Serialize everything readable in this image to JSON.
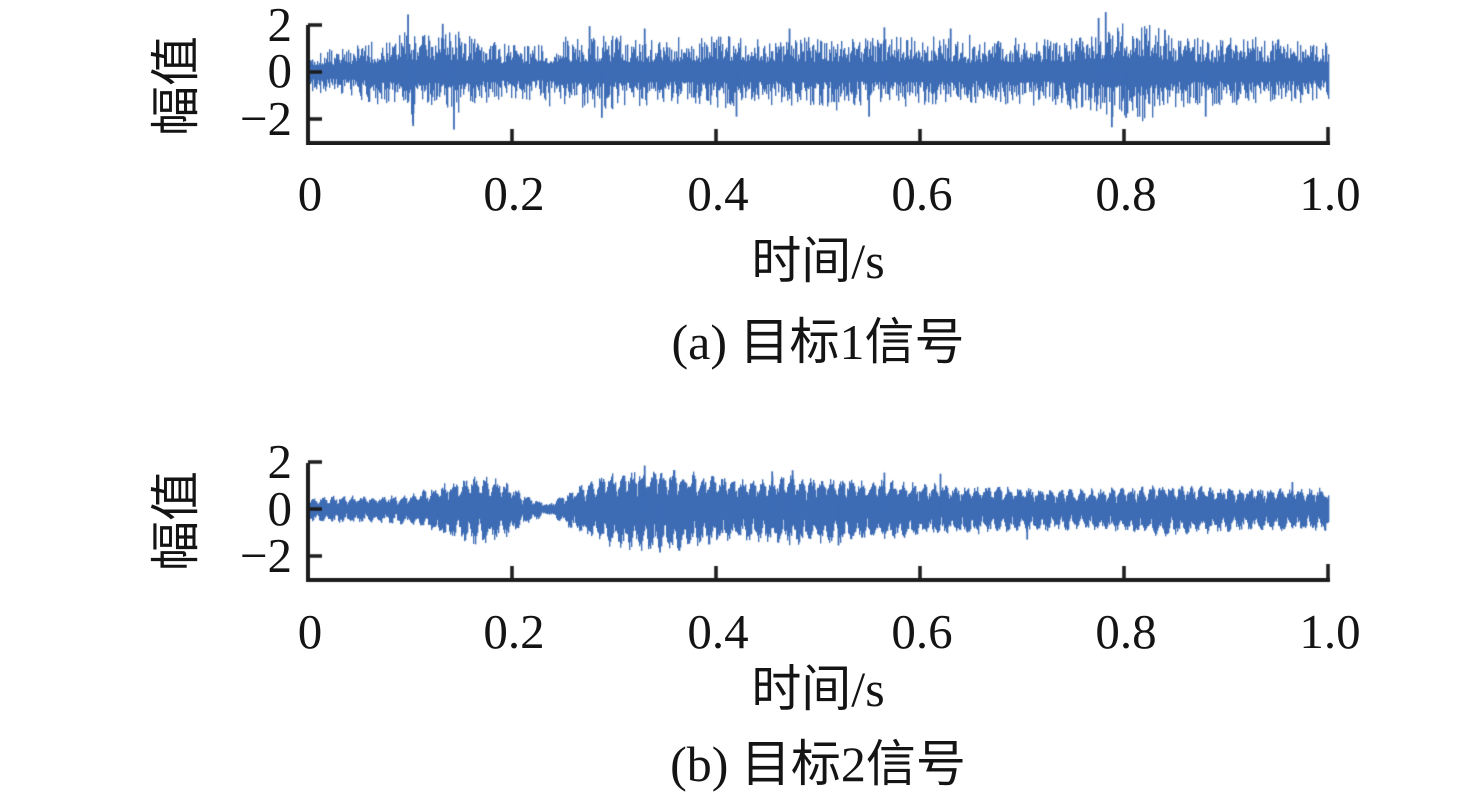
{
  "style": {
    "line_color": "#3d6cb5",
    "axis_color": "#1c1c1c",
    "text_color": "#141414",
    "background": "#ffffff"
  },
  "chart_data": [
    {
      "type": "line",
      "panel_label": "(a) 目标1信号",
      "xlabel": "时间/s",
      "ylabel": "幅值",
      "xlim": [
        0,
        1.0
      ],
      "ylim": [
        -3,
        2
      ],
      "xticks": [
        0,
        0.2,
        0.4,
        0.6,
        0.8,
        1.0
      ],
      "xtick_labels": [
        "0",
        "0.2",
        "0.4",
        "0.6",
        "0.8",
        "1.0"
      ],
      "yticks": [
        2,
        0,
        -2
      ],
      "ytick_labels": [
        "2",
        "0",
        "−2"
      ],
      "grid": false,
      "legend": null,
      "waveform_character": "dense zero-mean broadband noise, typical band ±1.2, occasional spikes to ±2.5",
      "envelope_t": [
        0,
        0.02,
        0.05,
        0.08,
        0.1,
        0.12,
        0.145,
        0.17,
        0.2,
        0.23,
        0.26,
        0.3,
        0.33,
        0.37,
        0.41,
        0.45,
        0.49,
        0.53,
        0.57,
        0.61,
        0.65,
        0.69,
        0.73,
        0.77,
        0.8,
        0.82,
        0.85,
        0.89,
        0.93,
        0.97,
        1.0
      ],
      "envelope_amp": [
        0.85,
        1.0,
        1.2,
        1.5,
        1.9,
        1.5,
        1.9,
        1.4,
        1.2,
        1.25,
        1.5,
        1.6,
        1.45,
        1.5,
        1.55,
        1.4,
        1.55,
        1.45,
        1.5,
        1.55,
        1.35,
        1.5,
        1.45,
        1.65,
        2.1,
        2.2,
        1.5,
        1.45,
        1.5,
        1.35,
        1.25
      ],
      "peaks": [
        {
          "t": 0.098,
          "v": 2.45
        },
        {
          "t": 0.103,
          "v": -2.3
        },
        {
          "t": 0.132,
          "v": 2.05
        },
        {
          "t": 0.143,
          "v": -2.45
        },
        {
          "t": 0.276,
          "v": 1.95
        },
        {
          "t": 0.288,
          "v": -1.95
        },
        {
          "t": 0.33,
          "v": 1.85
        },
        {
          "t": 0.42,
          "v": -1.9
        },
        {
          "t": 0.472,
          "v": 1.85
        },
        {
          "t": 0.55,
          "v": -1.9
        },
        {
          "t": 0.565,
          "v": 1.9
        },
        {
          "t": 0.63,
          "v": 1.85
        },
        {
          "t": 0.775,
          "v": 2.3
        },
        {
          "t": 0.782,
          "v": 2.55
        },
        {
          "t": 0.788,
          "v": -2.35
        },
        {
          "t": 0.802,
          "v": -1.95
        },
        {
          "t": 0.84,
          "v": 1.8
        },
        {
          "t": 0.88,
          "v": -1.9
        }
      ]
    },
    {
      "type": "line",
      "panel_label": "(b) 目标2信号",
      "xlabel": "时间/s",
      "ylabel": "幅值",
      "xlim": [
        0,
        1.0
      ],
      "ylim": [
        -3,
        2
      ],
      "xticks": [
        0,
        0.2,
        0.4,
        0.6,
        0.8,
        1.0
      ],
      "xtick_labels": [
        "0",
        "0.2",
        "0.4",
        "0.6",
        "0.8",
        "1.0"
      ],
      "yticks": [
        2,
        0,
        -2
      ],
      "ytick_labels": [
        "2",
        "0",
        "−2"
      ],
      "grid": false,
      "legend": null,
      "waveform_character": "amplitude-modulated oscillation; envelope node near t≈0.23, strongest lobe ≈±1.8 near t≈0.33",
      "carrier_cycles": 100,
      "envelope_t": [
        0,
        0.03,
        0.06,
        0.1,
        0.13,
        0.165,
        0.19,
        0.215,
        0.235,
        0.26,
        0.29,
        0.32,
        0.355,
        0.385,
        0.42,
        0.45,
        0.48,
        0.51,
        0.55,
        0.6,
        0.65,
        0.7,
        0.75,
        0.8,
        0.835,
        0.87,
        0.91,
        0.95,
        1.0
      ],
      "envelope_amp": [
        0.5,
        0.6,
        0.55,
        0.65,
        1.1,
        1.5,
        1.25,
        0.6,
        0.22,
        0.9,
        1.5,
        1.75,
        1.8,
        1.55,
        1.35,
        1.4,
        1.5,
        1.4,
        1.3,
        1.15,
        1.05,
        0.95,
        0.88,
        0.95,
        1.12,
        1.05,
        0.92,
        0.9,
        0.95
      ],
      "peaks": [
        {
          "t": 0.33,
          "v": 1.85
        },
        {
          "t": 0.345,
          "v": -1.85
        },
        {
          "t": 0.455,
          "v": 1.6
        },
        {
          "t": 0.475,
          "v": 1.65
        },
        {
          "t": 0.52,
          "v": -1.55
        },
        {
          "t": 0.565,
          "v": 1.55
        },
        {
          "t": 0.62,
          "v": 1.5
        },
        {
          "t": 0.705,
          "v": -1.3
        },
        {
          "t": 0.965,
          "v": 1.15
        }
      ]
    }
  ]
}
